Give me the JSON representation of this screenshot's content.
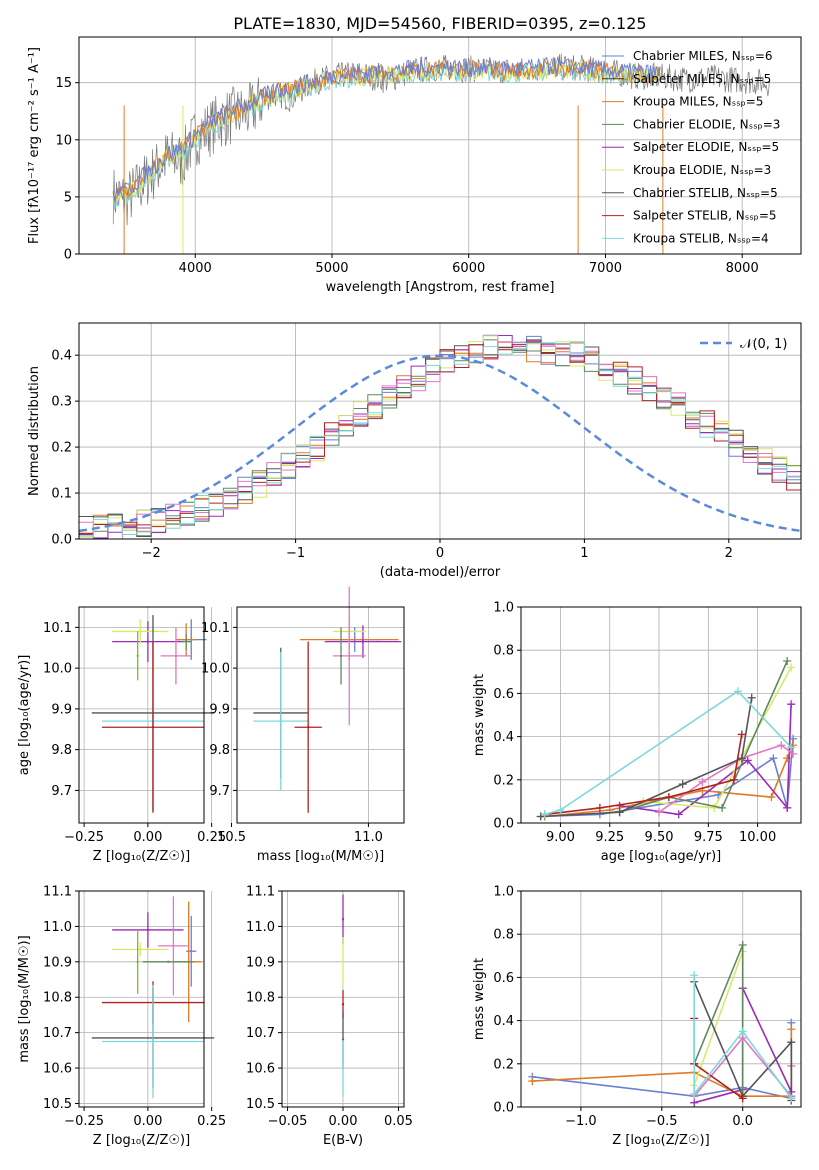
{
  "figure": {
    "title": "PLATE=1830, MJD=54560, FIBERID=0395, z=0.125"
  },
  "colors": {
    "Chabrier MILES": "#6a7fd6",
    "Salpeter MILES": "#333333",
    "Kroupa MILES": "#e07b26",
    "Chabrier ELODIE": "#5f8a5f",
    "Salpeter ELODIE": "#9b2bb8",
    "Kroupa ELODIE": "#d9e86b",
    "Chabrier STELIB": "#555555",
    "Salpeter STELIB": "#b22222",
    "Kroupa STELIB": "#7fd8d8",
    "pink": "#e377c2",
    "green": "#7cbb2a",
    "dashed": "#5b8bd8"
  },
  "chart_data": [
    {
      "id": "spectrum",
      "type": "line",
      "title": "PLATE=1830, MJD=54560, FIBERID=0395, z=0.125",
      "xlabel": "wavelength [Angstrom, rest frame]",
      "ylabel": "Flux [fλ10⁻¹⁷ erg cm⁻² s⁻¹ A⁻¹]",
      "xlim": [
        3150,
        8430
      ],
      "ylim": [
        0,
        19
      ],
      "xticks": [
        "4000",
        "5000",
        "6000",
        "7000",
        "8000"
      ],
      "yticks": [
        "0",
        "5",
        "10",
        "15"
      ],
      "legend_position": "top-right",
      "legend": [
        "Chabrier MILES, N_SSP=6",
        "Salpeter MILES, N_SSP=5",
        "Kroupa MILES, N_SSP=5",
        "Chabrier ELODIE, N_SSP=3",
        "Salpeter ELODIE, N_SSP=5",
        "Kroupa ELODIE, N_SSP=3",
        "Chabrier STELIB, N_SSP=5",
        "Salpeter STELIB, N_SSP=5",
        "Kroupa STELIB, N_SSP=4"
      ],
      "data_x": [
        3400,
        3500,
        3600,
        3700,
        3800,
        3900,
        4000,
        4100,
        4200,
        4300,
        4400,
        4500,
        4600,
        4700,
        4800,
        4900,
        5000,
        5200,
        5400,
        5600,
        5800,
        6000,
        6200,
        6400,
        6600,
        6800,
        7000,
        7200,
        7400,
        7600,
        7800,
        8000,
        8200
      ],
      "data_y": [
        5.2,
        4.8,
        6.0,
        7.2,
        8.5,
        8.2,
        10.2,
        11.0,
        11.8,
        12.2,
        12.4,
        13.6,
        14.0,
        13.6,
        14.6,
        15.2,
        15.5,
        15.8,
        15.2,
        16.1,
        16.3,
        16.2,
        16.1,
        16.1,
        16.4,
        16.3,
        16.0,
        15.6,
        15.5,
        15.3,
        15.4,
        15.2,
        15.0
      ],
      "model_x": [
        3400,
        3500,
        3600,
        3700,
        3800,
        3900,
        4000,
        4100,
        4200,
        4300,
        4400,
        4500,
        4600,
        4700,
        4800,
        4900,
        5000,
        5200,
        5400,
        5600,
        5800,
        6000,
        6200,
        6400,
        6600,
        6800,
        7000,
        7200,
        7400
      ],
      "model_y": [
        5.0,
        5.3,
        6.4,
        7.4,
        8.6,
        9.0,
        10.2,
        11.2,
        11.9,
        12.5,
        13.0,
        13.6,
        14.1,
        14.3,
        14.7,
        15.0,
        15.4,
        15.6,
        15.8,
        16.0,
        16.1,
        16.1,
        16.0,
        16.0,
        16.2,
        16.1,
        15.9,
        15.7,
        15.6
      ]
    },
    {
      "id": "residuals",
      "type": "line",
      "xlabel": "(data-model)/error",
      "ylabel": "Normed distribution",
      "xlim": [
        -2.5,
        2.5
      ],
      "ylim": [
        0,
        0.47
      ],
      "xticks": [
        "−2",
        "−1",
        "0",
        "1",
        "2"
      ],
      "yticks": [
        "0.0",
        "0.1",
        "0.2",
        "0.3",
        "0.4"
      ],
      "legend": [
        "𝒩(0, 1)"
      ],
      "legend_position": "top-right",
      "grid": true,
      "bin_width": 0.1,
      "bin_start": -2.5,
      "hist_envelope": [
        0.02,
        0.022,
        0.025,
        0.03,
        0.035,
        0.04,
        0.047,
        0.055,
        0.065,
        0.077,
        0.09,
        0.105,
        0.12,
        0.14,
        0.16,
        0.18,
        0.2,
        0.225,
        0.25,
        0.27,
        0.29,
        0.31,
        0.33,
        0.35,
        0.37,
        0.385,
        0.4,
        0.41,
        0.42,
        0.425,
        0.42,
        0.415,
        0.41,
        0.405,
        0.4,
        0.39,
        0.375,
        0.36,
        0.345,
        0.33,
        0.31,
        0.29,
        0.27,
        0.25,
        0.23,
        0.21,
        0.19,
        0.17,
        0.15,
        0.13
      ]
    },
    {
      "id": "age-vs-Z",
      "type": "scatter",
      "xlabel": "Z [log₁₀(Z/Z☉)]",
      "ylabel": "age  [log₁₀(age/yr)]",
      "xlim": [
        -0.27,
        0.22
      ],
      "ylim": [
        9.62,
        10.15
      ],
      "xticks": [
        "−0.25",
        "0.00",
        "0.25"
      ],
      "yticks": [
        "9.7",
        "9.8",
        "9.9",
        "10.0",
        "10.1"
      ],
      "points": [
        {
          "model": "Chabrier MILES",
          "x": 0.17,
          "y": 10.07,
          "xerr": 0.06,
          "yerr": 0.05
        },
        {
          "model": "Kroupa MILES",
          "x": 0.15,
          "y": 10.07,
          "xerr": 0.04,
          "yerr": 0.04
        },
        {
          "model": "Salpeter ELODIE",
          "x": 0.0,
          "y": 10.065,
          "xerr": 0.14,
          "yerr": 0.05
        },
        {
          "model": "Kroupa ELODIE",
          "x": -0.03,
          "y": 10.09,
          "xerr": 0.11,
          "yerr": 0.03
        },
        {
          "model": "green",
          "x": -0.04,
          "y": 10.03,
          "xerr": 0.0,
          "yerr": 0.06
        },
        {
          "model": "pink",
          "x": 0.11,
          "y": 10.03,
          "xerr": 0.06,
          "yerr": 0.07
        },
        {
          "model": "Chabrier ELODIE",
          "x": 0.15,
          "y": 10.065,
          "xerr": 0.02,
          "yerr": 0.02
        },
        {
          "model": "Chabrier STELIB",
          "x": 0.02,
          "y": 9.89,
          "xerr": 0.24,
          "yerr": 0.24
        },
        {
          "model": "Kroupa STELIB",
          "x": 0.02,
          "y": 9.87,
          "xerr": 0.2,
          "yerr": 0.06
        },
        {
          "model": "Salpeter STELIB",
          "x": 0.02,
          "y": 9.855,
          "xerr": 0.2,
          "yerr": 0.21
        }
      ]
    },
    {
      "id": "age-vs-mass",
      "type": "scatter",
      "xlabel": "mass [log₁₀(M/M☉)]",
      "xlim": [
        10.52,
        11.13
      ],
      "ylim": [
        9.62,
        10.15
      ],
      "xticks": [
        "10.5",
        "11.0"
      ],
      "yticks": [
        "9.7",
        "9.8",
        "9.9",
        "10.0",
        "10.1"
      ],
      "points": [
        {
          "model": "Chabrier MILES",
          "x": 10.95,
          "y": 10.07,
          "xerr": 0.1,
          "yerr": 0.03
        },
        {
          "model": "Kroupa MILES",
          "x": 10.93,
          "y": 10.07,
          "xerr": 0.18,
          "yerr": 0.05
        },
        {
          "model": "Salpeter ELODIE",
          "x": 10.98,
          "y": 10.065,
          "xerr": 0.14,
          "yerr": 0.04
        },
        {
          "model": "Kroupa ELODIE",
          "x": 10.93,
          "y": 10.09,
          "xerr": 0.06,
          "yerr": 0.05
        },
        {
          "model": "pink",
          "x": 10.93,
          "y": 10.03,
          "xerr": 0.06,
          "yerr": 0.17
        },
        {
          "model": "Chabrier ELODIE",
          "x": 10.9,
          "y": 10.03,
          "xerr": 0.0,
          "yerr": 0.07
        },
        {
          "model": "Chabrier STELIB",
          "x": 10.68,
          "y": 9.89,
          "xerr": 0.1,
          "yerr": 0.16
        },
        {
          "model": "Kroupa STELIB",
          "x": 10.68,
          "y": 9.87,
          "xerr": 0.1,
          "yerr": 0.17
        },
        {
          "model": "Salpeter STELIB",
          "x": 10.78,
          "y": 9.855,
          "xerr": 0.05,
          "yerr": 0.21
        }
      ]
    },
    {
      "id": "mass-weight-vs-age",
      "type": "line",
      "xlabel": "age  [log₁₀(age/yr)]",
      "ylabel": "mass weight",
      "xlim": [
        8.8,
        10.22
      ],
      "ylim": [
        0,
        1.0
      ],
      "xticks": [
        "9.00",
        "9.25",
        "9.50",
        "9.75",
        "10.00"
      ],
      "yticks": [
        "0.0",
        "0.2",
        "0.4",
        "0.6",
        "0.8",
        "1.0"
      ],
      "grid": true,
      "series": [
        {
          "model": "Chabrier MILES",
          "x": [
            8.9,
            9.2,
            9.8,
            10.08,
            10.15,
            10.18
          ],
          "y": [
            0.03,
            0.04,
            0.13,
            0.3,
            0.07,
            0.39
          ]
        },
        {
          "model": "Kroupa MILES",
          "x": [
            8.92,
            9.25,
            9.72,
            10.07,
            10.15,
            10.18
          ],
          "y": [
            0.03,
            0.06,
            0.15,
            0.12,
            0.3,
            0.36
          ]
        },
        {
          "model": "Salpeter ELODIE",
          "x": [
            9.3,
            9.6,
            9.95,
            10.15,
            10.17
          ],
          "y": [
            0.08,
            0.04,
            0.29,
            0.07,
            0.55
          ]
        },
        {
          "model": "Kroupa ELODIE",
          "x": [
            9.42,
            9.78,
            10.17
          ],
          "y": [
            0.1,
            0.07,
            0.72
          ]
        },
        {
          "model": "Chabrier ELODIE",
          "x": [
            9.3,
            9.55,
            9.82,
            10.15
          ],
          "y": [
            0.05,
            0.12,
            0.07,
            0.75
          ]
        },
        {
          "model": "pink",
          "x": [
            9.5,
            9.72,
            9.92,
            10.12,
            10.18
          ],
          "y": [
            0.05,
            0.19,
            0.3,
            0.36,
            0.32
          ]
        },
        {
          "model": "Chabrier STELIB",
          "x": [
            8.9,
            9.3,
            9.62,
            9.92,
            9.97
          ],
          "y": [
            0.03,
            0.05,
            0.18,
            0.3,
            0.58
          ]
        },
        {
          "model": "Salpeter STELIB",
          "x": [
            8.92,
            9.2,
            9.55,
            9.88,
            9.92
          ],
          "y": [
            0.04,
            0.07,
            0.12,
            0.2,
            0.41
          ]
        },
        {
          "model": "Kroupa STELIB",
          "x": [
            8.92,
            9.0,
            9.9,
            10.17
          ],
          "y": [
            0.04,
            0.06,
            0.61,
            0.35
          ]
        }
      ]
    },
    {
      "id": "mass-vs-Z",
      "type": "scatter",
      "xlabel": "Z [log₁₀(Z/Z☉)]",
      "ylabel": "mass [log₁₀(M/M☉)]",
      "xlim": [
        -0.27,
        0.22
      ],
      "ylim": [
        10.49,
        11.1
      ],
      "xticks": [
        "−0.25",
        "0.00",
        "0.25"
      ],
      "yticks": [
        "10.5",
        "10.6",
        "10.7",
        "10.8",
        "10.9",
        "11.0",
        "11.1"
      ],
      "points": [
        {
          "model": "Salpeter ELODIE",
          "x": 0.0,
          "y": 10.99,
          "xerr": 0.14,
          "yerr": 0.05
        },
        {
          "model": "Chabrier MILES",
          "x": 0.17,
          "y": 10.93,
          "xerr": 0.02,
          "yerr": 0.1
        },
        {
          "model": "Kroupa MILES",
          "x": 0.16,
          "y": 10.9,
          "xerr": 0.05,
          "yerr": 0.17
        },
        {
          "model": "pink",
          "x": 0.1,
          "y": 10.945,
          "xerr": 0.06,
          "yerr": 0.14
        },
        {
          "model": "Kroupa ELODIE",
          "x": -0.03,
          "y": 10.935,
          "xerr": 0.11,
          "yerr": 0.02
        },
        {
          "model": "green",
          "x": -0.04,
          "y": 10.9,
          "xerr": 0.0,
          "yerr": 0.09
        },
        {
          "model": "Chabrier ELODIE",
          "x": 0.08,
          "y": 10.9,
          "xerr": 0.1,
          "yerr": 0.0
        },
        {
          "model": "Salpeter STELIB",
          "x": 0.02,
          "y": 10.785,
          "xerr": 0.2,
          "yerr": 0.06
        },
        {
          "model": "Chabrier STELIB",
          "x": 0.02,
          "y": 10.685,
          "xerr": 0.24,
          "yerr": 0.14
        },
        {
          "model": "Kroupa STELIB",
          "x": 0.02,
          "y": 10.675,
          "xerr": 0.2,
          "yerr": 0.16
        }
      ]
    },
    {
      "id": "mass-vs-ebv",
      "type": "scatter",
      "xlabel": "E(B-V)",
      "xlim": [
        -0.055,
        0.055
      ],
      "ylim": [
        10.49,
        11.1
      ],
      "xticks": [
        "−0.05",
        "0.00",
        "0.05"
      ],
      "yticks": [
        "10.5",
        "10.6",
        "10.7",
        "10.8",
        "10.9",
        "11.0",
        "11.1"
      ],
      "points": [
        {
          "model": "Salpeter ELODIE",
          "x": 0.0,
          "y": 11.02,
          "yerr": 0.07
        },
        {
          "model": "Kroupa ELODIE",
          "x": 0.0,
          "y": 10.9,
          "yerr": 0.07
        },
        {
          "model": "Salpeter STELIB",
          "x": 0.0,
          "y": 10.78,
          "yerr": 0.04
        },
        {
          "model": "Chabrier STELIB",
          "x": 0.0,
          "y": 10.68,
          "yerr": 0.08
        },
        {
          "model": "Kroupa STELIB",
          "x": 0.0,
          "y": 10.6,
          "yerr": 0.08
        }
      ]
    },
    {
      "id": "mass-weight-vs-Z",
      "type": "line",
      "xlabel": "Z [log₁₀(Z/Z☉)]",
      "ylabel": "mass weight",
      "xlim": [
        -1.37,
        0.36
      ],
      "ylim": [
        0,
        1.0
      ],
      "xticks": [
        "−1.0",
        "−0.5",
        "0.0"
      ],
      "yticks": [
        "0.0",
        "0.2",
        "0.4",
        "0.6",
        "0.8",
        "1.0"
      ],
      "grid": true,
      "series": [
        {
          "model": "Chabrier MILES",
          "x": [
            -1.3,
            -0.3,
            0.0,
            0.3,
            0.3
          ],
          "y": [
            0.14,
            0.05,
            0.09,
            0.04,
            0.39
          ]
        },
        {
          "model": "Kroupa MILES",
          "x": [
            -1.3,
            -0.3,
            0.0,
            0.3,
            0.3
          ],
          "y": [
            0.12,
            0.16,
            0.05,
            0.05,
            0.36
          ]
        },
        {
          "model": "Salpeter ELODIE",
          "x": [
            -0.3,
            0.0,
            0.0,
            0.3
          ],
          "y": [
            0.02,
            0.08,
            0.55,
            0.07
          ]
        },
        {
          "model": "Kroupa ELODIE",
          "x": [
            -0.3,
            0.0,
            0.0
          ],
          "y": [
            0.1,
            0.72,
            0.07
          ]
        },
        {
          "model": "Chabrier ELODIE",
          "x": [
            -0.3,
            0.0,
            0.0
          ],
          "y": [
            0.2,
            0.75,
            0.05
          ]
        },
        {
          "model": "pink",
          "x": [
            -0.3,
            0.0,
            0.3,
            0.3
          ],
          "y": [
            0.05,
            0.32,
            0.05,
            0.19
          ]
        },
        {
          "model": "Chabrier STELIB",
          "x": [
            -0.3,
            0.0,
            0.3,
            0.3
          ],
          "y": [
            0.58,
            0.05,
            0.3,
            0.03
          ]
        },
        {
          "model": "Salpeter STELIB",
          "x": [
            -0.3,
            -0.3,
            0.0
          ],
          "y": [
            0.41,
            0.2,
            0.04
          ]
        },
        {
          "model": "Kroupa STELIB",
          "x": [
            -0.3,
            -0.3,
            0.0,
            0.3
          ],
          "y": [
            0.61,
            0.06,
            0.35,
            0.04
          ]
        }
      ]
    }
  ]
}
